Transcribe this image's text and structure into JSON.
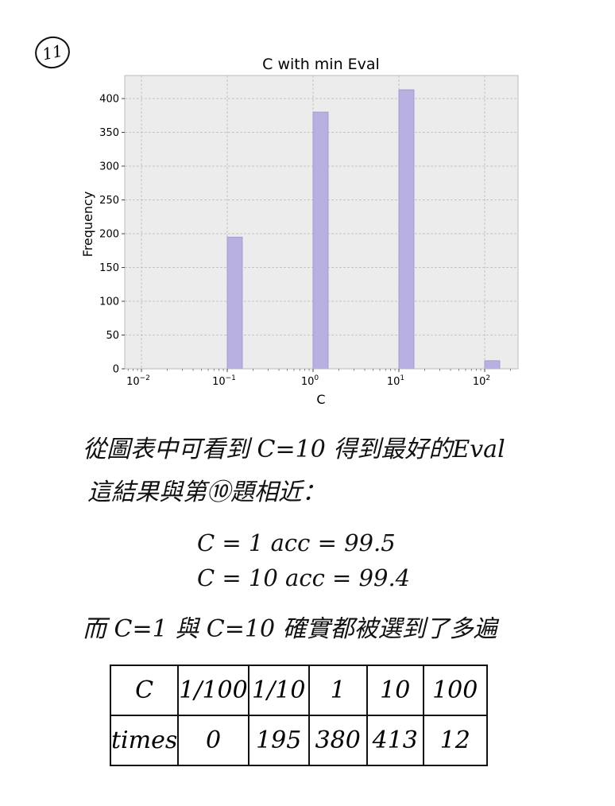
{
  "question_number": "11",
  "chart_data": {
    "type": "bar",
    "title": "C with min Eval",
    "xlabel": "C",
    "ylabel": "Frequency",
    "xscale": "log",
    "x_tick_labels": [
      "10^-2",
      "10^-1",
      "10^0",
      "10^1",
      "10^2"
    ],
    "x_tick_values": [
      0.01,
      0.1,
      1,
      10,
      100
    ],
    "y_ticks": [
      0,
      50,
      100,
      150,
      200,
      250,
      300,
      350,
      400
    ],
    "ylim": [
      0,
      435
    ],
    "grid": true,
    "bar_color": "#b8b0e0",
    "background": "#ececec",
    "bars": [
      {
        "x": 0.1,
        "value": 195
      },
      {
        "x": 1,
        "value": 380
      },
      {
        "x": 10,
        "value": 413
      },
      {
        "x": 100,
        "value": 12
      }
    ]
  },
  "notes": {
    "line1": "從圖表中可看到 C=10 得到最好的Eval",
    "line2": "這結果與第⑩題相近：",
    "line3": "C = 1    acc = 99.5",
    "line4": "C = 10   acc = 99.4",
    "line5": "而 C=1 與 C=10 確實都被選到了多遍"
  },
  "table": {
    "header": [
      "C",
      "1/100",
      "1/10",
      "1",
      "10",
      "100"
    ],
    "row": [
      "times",
      "0",
      "195",
      "380",
      "413",
      "12"
    ]
  }
}
